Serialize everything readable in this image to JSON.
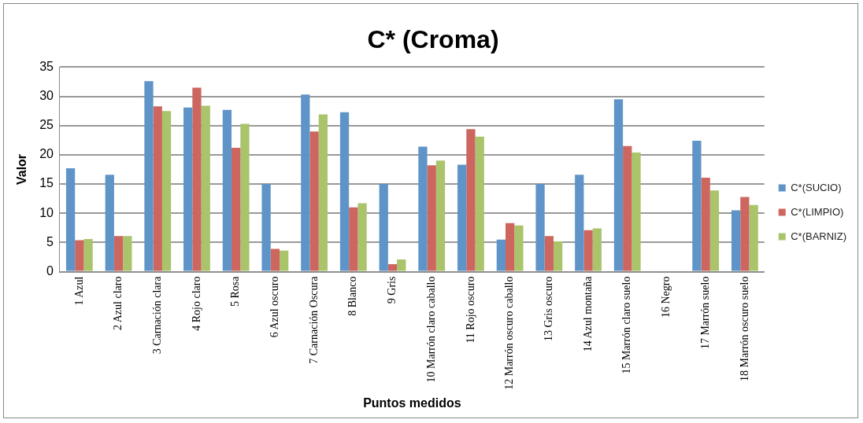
{
  "chart_data": {
    "type": "bar",
    "title": "C* (Croma)",
    "xlabel": "Puntos medidos",
    "ylabel": "Valor",
    "categories": [
      "1 Azul",
      "2 Azul claro",
      "3 Carnación clara",
      "4 Rojo claro",
      "5 Rosa",
      "6 Azul oscuro",
      "7 Carnación Oscura",
      "8 Blanco",
      "9 Gris",
      "10 Marrón claro caballo",
      "11 Rojo oscuro",
      "12 Marrón oscuro caballo",
      "13 Gris oscuro",
      "14 Azul montaña",
      "15 Marrón claro suelo",
      "16 Negro",
      "17 Marrón suelo",
      "18 Marrón oscuro suelo"
    ],
    "series": [
      {
        "name": "C*(SUCIO)",
        "color": "#5f94c8",
        "values": [
          17.7,
          16.6,
          32.6,
          28.1,
          27.7,
          15.0,
          30.3,
          27.3,
          15.0,
          21.4,
          18.3,
          5.5,
          15.0,
          16.6,
          29.5,
          0,
          22.4,
          10.5
        ]
      },
      {
        "name": "C*(LIMPIO)",
        "color": "#cd665f",
        "values": [
          5.4,
          6.1,
          28.3,
          31.5,
          21.2,
          3.9,
          24.0,
          11.0,
          1.3,
          18.2,
          24.4,
          8.3,
          6.1,
          7.1,
          21.5,
          0,
          16.1,
          12.8
        ]
      },
      {
        "name": "C*(BARNIZ)",
        "color": "#a9c46a",
        "values": [
          5.6,
          6.1,
          27.5,
          28.4,
          25.3,
          3.6,
          26.9,
          11.7,
          2.1,
          19.0,
          23.1,
          7.9,
          5.2,
          7.4,
          20.4,
          0,
          13.9,
          11.4
        ]
      }
    ],
    "ylim": [
      0,
      35
    ],
    "yticks": [
      0,
      5,
      10,
      15,
      20,
      25,
      30,
      35
    ],
    "grid": "y",
    "legend": "right"
  }
}
